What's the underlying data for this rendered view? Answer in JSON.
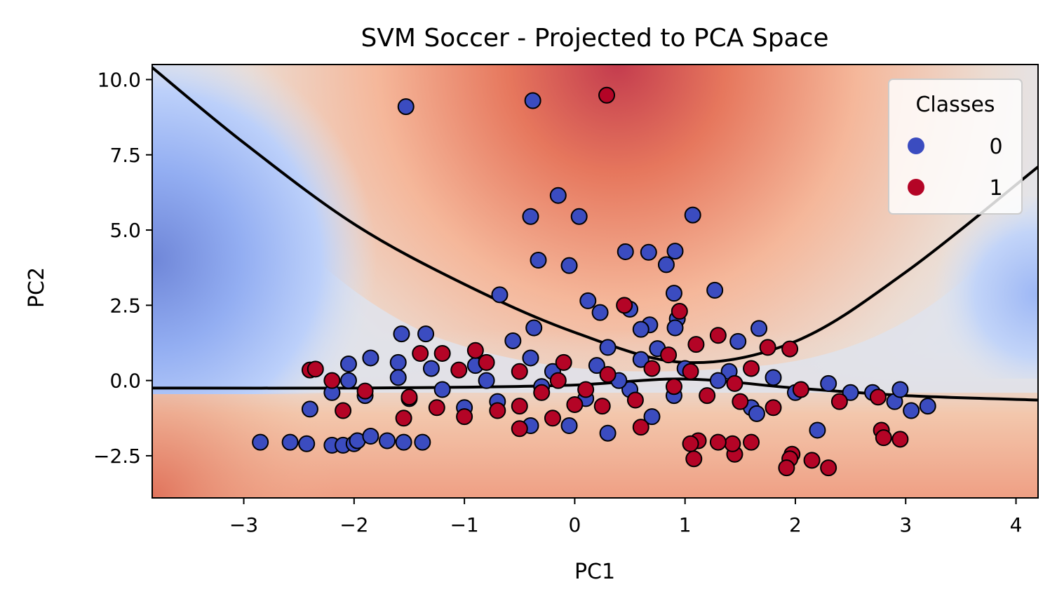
{
  "chart_data": {
    "type": "scatter",
    "title": "SVM Soccer - Projected to PCA Space",
    "xlabel": "PC1",
    "ylabel": "PC2",
    "xlim": [
      -3.83,
      4.2
    ],
    "ylim": [
      -3.9,
      10.5
    ],
    "xticks": [
      -3,
      -2,
      -1,
      0,
      1,
      2,
      3,
      4
    ],
    "xtick_labels": [
      "−3",
      "−2",
      "−1",
      "0",
      "1",
      "2",
      "3",
      "4"
    ],
    "yticks": [
      -2.5,
      0.0,
      2.5,
      5.0,
      7.5,
      10.0
    ],
    "ytick_labels": [
      "−2.5",
      "0.0",
      "2.5",
      "5.0",
      "7.5",
      "10.0"
    ],
    "grid": false,
    "legend": {
      "title": "Classes",
      "position": "top-right",
      "entries": [
        {
          "label": "0",
          "color": "#3b4cc0"
        },
        {
          "label": "1",
          "color": "#b40426"
        }
      ]
    },
    "background": "decision-function contour, coolwarm colormap",
    "decision_boundary": [
      {
        "x": [
          -3.83,
          -3,
          -2,
          -1,
          0,
          1,
          2,
          3,
          4.2
        ],
        "y": [
          10.4,
          7.9,
          5.2,
          3.2,
          1.6,
          0.6,
          1.3,
          3.6,
          7.1
        ]
      },
      {
        "x": [
          -3.83,
          -2,
          -1,
          0,
          1,
          2,
          3,
          4.2
        ],
        "y": [
          -0.25,
          -0.25,
          -0.22,
          -0.15,
          0.05,
          -0.25,
          -0.5,
          -0.65
        ]
      }
    ],
    "series": [
      {
        "name": "0",
        "color": "#3b4cc0",
        "points": [
          [
            -1.53,
            9.1
          ],
          [
            -0.38,
            9.3
          ],
          [
            -0.15,
            6.15
          ],
          [
            -0.4,
            5.45
          ],
          [
            0.04,
            5.45
          ],
          [
            1.07,
            5.5
          ],
          [
            -0.33,
            4.0
          ],
          [
            -0.05,
            3.82
          ],
          [
            0.46,
            4.28
          ],
          [
            0.67,
            4.26
          ],
          [
            0.91,
            4.3
          ],
          [
            0.83,
            3.85
          ],
          [
            1.27,
            3.0
          ],
          [
            0.9,
            2.9
          ],
          [
            -0.68,
            2.85
          ],
          [
            0.12,
            2.65
          ],
          [
            0.23,
            2.26
          ],
          [
            0.5,
            2.37
          ],
          [
            0.93,
            2.05
          ],
          [
            0.91,
            1.75
          ],
          [
            -0.37,
            1.75
          ],
          [
            -1.57,
            1.55
          ],
          [
            -1.35,
            1.55
          ],
          [
            1.67,
            1.73
          ],
          [
            0.68,
            1.85
          ],
          [
            0.6,
            1.7
          ],
          [
            -0.56,
            1.32
          ],
          [
            1.48,
            1.3
          ],
          [
            0.75,
            1.06
          ],
          [
            0.3,
            1.1
          ],
          [
            -1.85,
            0.75
          ],
          [
            -2.05,
            0.55
          ],
          [
            -1.6,
            0.6
          ],
          [
            -1.3,
            0.4
          ],
          [
            -0.9,
            0.5
          ],
          [
            -0.4,
            0.75
          ],
          [
            0.2,
            0.5
          ],
          [
            0.6,
            0.7
          ],
          [
            1.0,
            0.4
          ],
          [
            1.4,
            0.3
          ],
          [
            1.8,
            0.1
          ],
          [
            2.3,
            -0.1
          ],
          [
            -2.2,
            -0.4
          ],
          [
            -1.9,
            -0.5
          ],
          [
            -1.6,
            0.1
          ],
          [
            -1.2,
            -0.3
          ],
          [
            -0.8,
            0.0
          ],
          [
            -0.3,
            -0.2
          ],
          [
            0.1,
            -0.6
          ],
          [
            0.5,
            -0.3
          ],
          [
            0.9,
            -0.5
          ],
          [
            1.6,
            -0.9
          ],
          [
            2.0,
            -0.4
          ],
          [
            2.5,
            -0.4
          ],
          [
            2.9,
            -0.7
          ],
          [
            2.95,
            -0.3
          ],
          [
            3.2,
            -0.85
          ],
          [
            3.05,
            -1.0
          ],
          [
            2.7,
            -0.4
          ],
          [
            2.2,
            -1.65
          ],
          [
            1.65,
            -1.1
          ],
          [
            -2.4,
            -0.95
          ],
          [
            0.3,
            -1.75
          ],
          [
            -0.05,
            -1.5
          ],
          [
            -0.4,
            -1.5
          ],
          [
            -0.7,
            -0.7
          ],
          [
            -2.85,
            -2.05
          ],
          [
            -2.58,
            -2.05
          ],
          [
            -2.43,
            -2.1
          ],
          [
            -2.2,
            -2.15
          ],
          [
            -2.1,
            -2.15
          ],
          [
            -2.0,
            -2.1
          ],
          [
            -1.97,
            -2.0
          ],
          [
            -1.85,
            -1.85
          ],
          [
            -1.7,
            -2.0
          ],
          [
            -1.55,
            -2.05
          ],
          [
            -1.38,
            -2.05
          ],
          [
            -2.05,
            0.0
          ],
          [
            -1.5,
            -0.6
          ],
          [
            -1.0,
            -0.9
          ],
          [
            0.7,
            -1.2
          ],
          [
            1.3,
            0.0
          ],
          [
            -0.2,
            0.3
          ],
          [
            0.4,
            0.0
          ]
        ]
      },
      {
        "name": "1",
        "color": "#b40426",
        "points": [
          [
            0.29,
            9.48
          ],
          [
            0.45,
            2.5
          ],
          [
            0.95,
            2.3
          ],
          [
            1.3,
            1.5
          ],
          [
            1.1,
            1.2
          ],
          [
            1.75,
            1.1
          ],
          [
            1.95,
            1.05
          ],
          [
            0.85,
            0.85
          ],
          [
            -0.9,
            1.0
          ],
          [
            -1.2,
            0.9
          ],
          [
            -2.4,
            0.35
          ],
          [
            -2.35,
            0.38
          ],
          [
            -2.2,
            0.0
          ],
          [
            -1.9,
            -0.35
          ],
          [
            -1.5,
            -0.55
          ],
          [
            -1.25,
            -0.9
          ],
          [
            -1.0,
            -1.2
          ],
          [
            -0.7,
            -1.0
          ],
          [
            -0.5,
            -0.85
          ],
          [
            -0.3,
            -0.4
          ],
          [
            0.0,
            -0.8
          ],
          [
            0.25,
            -0.85
          ],
          [
            0.55,
            -0.65
          ],
          [
            0.9,
            -0.2
          ],
          [
            1.2,
            -0.5
          ],
          [
            1.5,
            -0.7
          ],
          [
            1.8,
            -0.9
          ],
          [
            2.4,
            -0.7
          ],
          [
            2.75,
            -0.55
          ],
          [
            2.78,
            -1.65
          ],
          [
            2.8,
            -1.9
          ],
          [
            2.95,
            -1.95
          ],
          [
            2.3,
            -2.9
          ],
          [
            2.15,
            -2.65
          ],
          [
            1.97,
            -2.45
          ],
          [
            1.95,
            -2.6
          ],
          [
            1.92,
            -2.9
          ],
          [
            1.6,
            -2.05
          ],
          [
            1.45,
            -2.45
          ],
          [
            1.43,
            -2.1
          ],
          [
            1.3,
            -2.05
          ],
          [
            1.12,
            -2.0
          ],
          [
            1.08,
            -2.6
          ],
          [
            1.05,
            -2.1
          ],
          [
            -2.1,
            -1.0
          ],
          [
            -1.55,
            -1.25
          ],
          [
            -0.5,
            -1.6
          ],
          [
            0.6,
            -1.55
          ],
          [
            -0.8,
            0.6
          ],
          [
            -0.5,
            0.3
          ],
          [
            -0.1,
            0.6
          ],
          [
            0.3,
            0.2
          ],
          [
            0.7,
            0.4
          ],
          [
            1.05,
            0.3
          ],
          [
            1.6,
            0.4
          ],
          [
            -1.05,
            0.35
          ],
          [
            -1.4,
            0.9
          ],
          [
            1.45,
            -0.1
          ],
          [
            0.1,
            -0.3
          ],
          [
            -0.15,
            0.0
          ],
          [
            2.05,
            -0.3
          ],
          [
            -0.2,
            -1.25
          ]
        ]
      }
    ]
  }
}
